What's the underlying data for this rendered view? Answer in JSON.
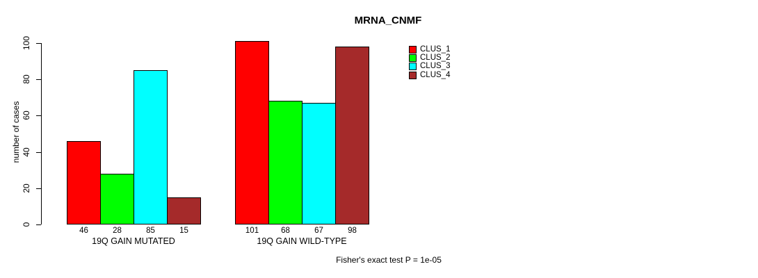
{
  "chart_data": {
    "type": "bar",
    "title": "MRNA_CNMF",
    "ylabel": "number of cases",
    "xlabel": "",
    "ylim": [
      0,
      105
    ],
    "yticks": [
      0,
      20,
      40,
      60,
      80,
      100
    ],
    "grid": false,
    "legend_position": "top-right",
    "categories": [
      "19Q GAIN MUTATED",
      "19Q GAIN WILD-TYPE"
    ],
    "series": [
      {
        "name": "CLUS_1",
        "color": "#ff0000",
        "values": [
          46,
          101
        ]
      },
      {
        "name": "CLUS_2",
        "color": "#00ff00",
        "values": [
          28,
          68
        ]
      },
      {
        "name": "CLUS_3",
        "color": "#00ffff",
        "values": [
          85,
          67
        ]
      },
      {
        "name": "CLUS_4",
        "color": "#a52a2a",
        "values": [
          15,
          98
        ]
      }
    ],
    "bar_value_labels": true,
    "annotation": "Fisher's exact test P = 1e-05",
    "colors": {
      "background": "#ffffff",
      "text": "#000000",
      "bar_border": "#000000"
    }
  }
}
